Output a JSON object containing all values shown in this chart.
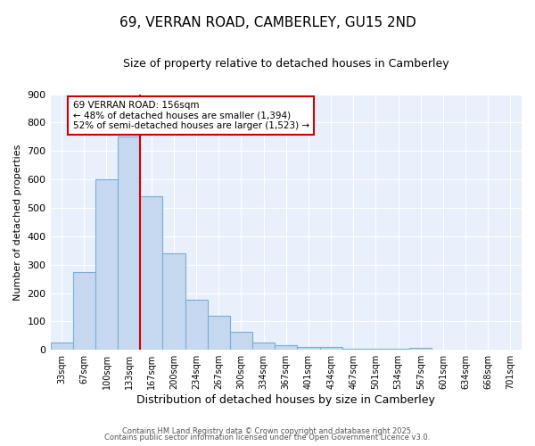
{
  "title_line1": "69, VERRAN ROAD, CAMBERLEY, GU15 2ND",
  "title_line2": "Size of property relative to detached houses in Camberley",
  "xlabel": "Distribution of detached houses by size in Camberley",
  "ylabel": "Number of detached properties",
  "bar_labels": [
    "33sqm",
    "67sqm",
    "100sqm",
    "133sqm",
    "167sqm",
    "200sqm",
    "234sqm",
    "267sqm",
    "300sqm",
    "334sqm",
    "367sqm",
    "401sqm",
    "434sqm",
    "467sqm",
    "501sqm",
    "534sqm",
    "567sqm",
    "601sqm",
    "634sqm",
    "668sqm",
    "701sqm"
  ],
  "bar_values": [
    25,
    275,
    600,
    750,
    540,
    340,
    175,
    120,
    65,
    25,
    15,
    10,
    10,
    5,
    5,
    3,
    8,
    0,
    0,
    0,
    0
  ],
  "bar_color": "#c5d8f0",
  "bar_edgecolor": "#7aadd4",
  "vline_color": "#cc0000",
  "annotation_title": "69 VERRAN ROAD: 156sqm",
  "annotation_line2": "← 48% of detached houses are smaller (1,394)",
  "annotation_line3": "52% of semi-detached houses are larger (1,523) →",
  "annotation_box_color": "#cc0000",
  "annotation_bg": "#ffffff",
  "ylim": [
    0,
    900
  ],
  "yticks": [
    0,
    100,
    200,
    300,
    400,
    500,
    600,
    700,
    800,
    900
  ],
  "background_color": "#e8f0fb",
  "grid_color": "#ffffff",
  "footnote_line1": "Contains HM Land Registry data © Crown copyright and database right 2025.",
  "footnote_line2": "Contains public sector information licensed under the Open Government Licence v3.0."
}
